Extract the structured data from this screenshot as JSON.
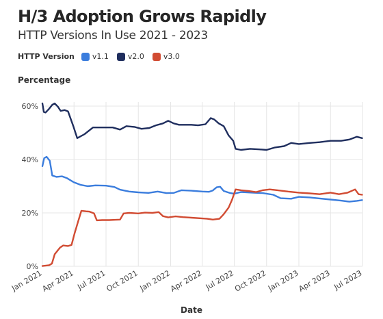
{
  "chart_data": {
    "type": "line",
    "title": "H/3 Adoption Grows Rapidly",
    "subtitle": "HTTP Versions In Use 2021 - 2023",
    "legend_title": "HTTP Version",
    "legend_placement": "top-left",
    "xlabel": "Date",
    "ylabel": "Percentage",
    "ylim": [
      0,
      60
    ],
    "xlim": [
      "2021-01-01",
      "2023-07-01"
    ],
    "grid": true,
    "y_ticks": [
      {
        "value": 0,
        "label": "0%"
      },
      {
        "value": 20,
        "label": "20%"
      },
      {
        "value": 40,
        "label": "40%"
      },
      {
        "value": 60,
        "label": "60%"
      }
    ],
    "x_ticks": [
      {
        "value": "2021-01-01",
        "label": "Jan 2021"
      },
      {
        "value": "2021-04-01",
        "label": "Apr 2021"
      },
      {
        "value": "2021-07-01",
        "label": "Jul 2021"
      },
      {
        "value": "2021-10-01",
        "label": "Oct 2021"
      },
      {
        "value": "2022-01-01",
        "label": "Jan 2022"
      },
      {
        "value": "2022-04-01",
        "label": "Apr 2022"
      },
      {
        "value": "2022-07-01",
        "label": "Jul 2022"
      },
      {
        "value": "2022-10-01",
        "label": "Oct 2022"
      },
      {
        "value": "2023-01-01",
        "label": "Jan 2023"
      },
      {
        "value": "2023-04-01",
        "label": "Apr 2023"
      },
      {
        "value": "2023-07-01",
        "label": "Jul 2023"
      }
    ],
    "series": [
      {
        "name": "v1.1",
        "color": "#3b7ddd",
        "points": [
          [
            "2021-01-01",
            37.5
          ],
          [
            "2021-01-06",
            40.5
          ],
          [
            "2021-01-13",
            41.0
          ],
          [
            "2021-01-22",
            39.5
          ],
          [
            "2021-01-29",
            34.0
          ],
          [
            "2021-02-10",
            33.5
          ],
          [
            "2021-02-26",
            33.7
          ],
          [
            "2021-03-12",
            33.0
          ],
          [
            "2021-03-31",
            31.5
          ],
          [
            "2021-04-20",
            30.5
          ],
          [
            "2021-05-10",
            30.0
          ],
          [
            "2021-06-01",
            30.3
          ],
          [
            "2021-07-01",
            30.2
          ],
          [
            "2021-07-25",
            29.7
          ],
          [
            "2021-08-10",
            28.7
          ],
          [
            "2021-09-05",
            28.0
          ],
          [
            "2021-10-01",
            27.7
          ],
          [
            "2021-10-30",
            27.5
          ],
          [
            "2021-11-25",
            28.0
          ],
          [
            "2021-12-20",
            27.4
          ],
          [
            "2022-01-10",
            27.5
          ],
          [
            "2022-02-01",
            28.5
          ],
          [
            "2022-03-01",
            28.3
          ],
          [
            "2022-04-01",
            28.0
          ],
          [
            "2022-04-20",
            27.9
          ],
          [
            "2022-05-01",
            28.4
          ],
          [
            "2022-05-12",
            29.6
          ],
          [
            "2022-05-22",
            29.8
          ],
          [
            "2022-06-01",
            28.2
          ],
          [
            "2022-06-20",
            27.4
          ],
          [
            "2022-07-01",
            27.2
          ],
          [
            "2022-07-20",
            27.8
          ],
          [
            "2022-08-20",
            27.6
          ],
          [
            "2022-09-20",
            27.4
          ],
          [
            "2022-10-20",
            26.8
          ],
          [
            "2022-11-10",
            25.5
          ],
          [
            "2022-12-10",
            25.3
          ],
          [
            "2023-01-01",
            26.0
          ],
          [
            "2023-02-01",
            25.8
          ],
          [
            "2023-03-01",
            25.4
          ],
          [
            "2023-04-01",
            25.0
          ],
          [
            "2023-05-01",
            24.6
          ],
          [
            "2023-05-25",
            24.2
          ],
          [
            "2023-06-15",
            24.5
          ],
          [
            "2023-06-30",
            24.8
          ]
        ]
      },
      {
        "name": "v2.0",
        "color": "#1f2e5e",
        "points": [
          [
            "2021-01-01",
            61.0
          ],
          [
            "2021-01-05",
            57.8
          ],
          [
            "2021-01-10",
            57.6
          ],
          [
            "2021-01-20",
            59.0
          ],
          [
            "2021-01-29",
            60.5
          ],
          [
            "2021-02-05",
            61.0
          ],
          [
            "2021-02-14",
            59.8
          ],
          [
            "2021-02-22",
            58.2
          ],
          [
            "2021-03-05",
            58.5
          ],
          [
            "2021-03-15",
            58.0
          ],
          [
            "2021-03-30",
            52.5
          ],
          [
            "2021-04-10",
            48.0
          ],
          [
            "2021-05-01",
            49.5
          ],
          [
            "2021-05-25",
            52.0
          ],
          [
            "2021-06-20",
            52.0
          ],
          [
            "2021-07-20",
            52.0
          ],
          [
            "2021-08-10",
            51.2
          ],
          [
            "2021-08-28",
            52.5
          ],
          [
            "2021-09-20",
            52.2
          ],
          [
            "2021-10-10",
            51.5
          ],
          [
            "2021-11-01",
            51.8
          ],
          [
            "2021-11-20",
            52.8
          ],
          [
            "2021-12-10",
            53.5
          ],
          [
            "2021-12-25",
            54.5
          ],
          [
            "2022-01-10",
            53.5
          ],
          [
            "2022-01-25",
            53.0
          ],
          [
            "2022-02-10",
            53.0
          ],
          [
            "2022-03-01",
            53.0
          ],
          [
            "2022-03-20",
            52.8
          ],
          [
            "2022-04-10",
            53.2
          ],
          [
            "2022-04-25",
            55.5
          ],
          [
            "2022-05-05",
            55.0
          ],
          [
            "2022-05-18",
            53.5
          ],
          [
            "2022-06-01",
            52.5
          ],
          [
            "2022-06-15",
            49.0
          ],
          [
            "2022-06-28",
            47.0
          ],
          [
            "2022-07-05",
            44.0
          ],
          [
            "2022-07-20",
            43.6
          ],
          [
            "2022-08-15",
            44.0
          ],
          [
            "2022-09-10",
            43.8
          ],
          [
            "2022-10-01",
            43.6
          ],
          [
            "2022-10-25",
            44.5
          ],
          [
            "2022-11-20",
            45.0
          ],
          [
            "2022-12-10",
            46.2
          ],
          [
            "2023-01-01",
            45.8
          ],
          [
            "2023-02-01",
            46.2
          ],
          [
            "2023-03-01",
            46.5
          ],
          [
            "2023-04-01",
            47.0
          ],
          [
            "2023-05-01",
            47.0
          ],
          [
            "2023-05-25",
            47.5
          ],
          [
            "2023-06-15",
            48.5
          ],
          [
            "2023-06-30",
            48.0
          ]
        ]
      },
      {
        "name": "v3.0",
        "color": "#d14b32",
        "points": [
          [
            "2021-01-01",
            0.1
          ],
          [
            "2021-01-20",
            0.4
          ],
          [
            "2021-01-28",
            1.0
          ],
          [
            "2021-02-05",
            4.5
          ],
          [
            "2021-02-20",
            7.0
          ],
          [
            "2021-03-01",
            7.8
          ],
          [
            "2021-03-15",
            7.6
          ],
          [
            "2021-03-25",
            8.0
          ],
          [
            "2021-04-02",
            12.0
          ],
          [
            "2021-04-12",
            16.5
          ],
          [
            "2021-04-22",
            20.8
          ],
          [
            "2021-05-05",
            20.6
          ],
          [
            "2021-05-15",
            20.5
          ],
          [
            "2021-05-28",
            19.8
          ],
          [
            "2021-06-05",
            17.2
          ],
          [
            "2021-06-20",
            17.3
          ],
          [
            "2021-07-10",
            17.3
          ],
          [
            "2021-07-28",
            17.4
          ],
          [
            "2021-08-10",
            17.5
          ],
          [
            "2021-08-20",
            19.8
          ],
          [
            "2021-09-05",
            20.0
          ],
          [
            "2021-10-01",
            19.8
          ],
          [
            "2021-10-20",
            20.1
          ],
          [
            "2021-11-10",
            20.0
          ],
          [
            "2021-11-28",
            20.3
          ],
          [
            "2021-12-10",
            18.8
          ],
          [
            "2021-12-25",
            18.3
          ],
          [
            "2022-01-15",
            18.7
          ],
          [
            "2022-02-05",
            18.4
          ],
          [
            "2022-03-01",
            18.2
          ],
          [
            "2022-03-25",
            18.0
          ],
          [
            "2022-04-15",
            17.8
          ],
          [
            "2022-05-01",
            17.5
          ],
          [
            "2022-05-20",
            17.8
          ],
          [
            "2022-06-01",
            19.5
          ],
          [
            "2022-06-15",
            22.0
          ],
          [
            "2022-06-25",
            25.0
          ],
          [
            "2022-07-05",
            28.8
          ],
          [
            "2022-07-20",
            28.5
          ],
          [
            "2022-08-10",
            28.2
          ],
          [
            "2022-09-01",
            27.8
          ],
          [
            "2022-09-20",
            28.5
          ],
          [
            "2022-10-10",
            28.8
          ],
          [
            "2022-11-01",
            28.5
          ],
          [
            "2022-12-01",
            28.0
          ],
          [
            "2023-01-01",
            27.6
          ],
          [
            "2023-02-01",
            27.3
          ],
          [
            "2023-03-01",
            27.0
          ],
          [
            "2023-04-01",
            27.6
          ],
          [
            "2023-04-25",
            27.0
          ],
          [
            "2023-05-20",
            27.6
          ],
          [
            "2023-06-10",
            28.8
          ],
          [
            "2023-06-20",
            27.0
          ],
          [
            "2023-06-30",
            26.8
          ]
        ]
      }
    ]
  }
}
